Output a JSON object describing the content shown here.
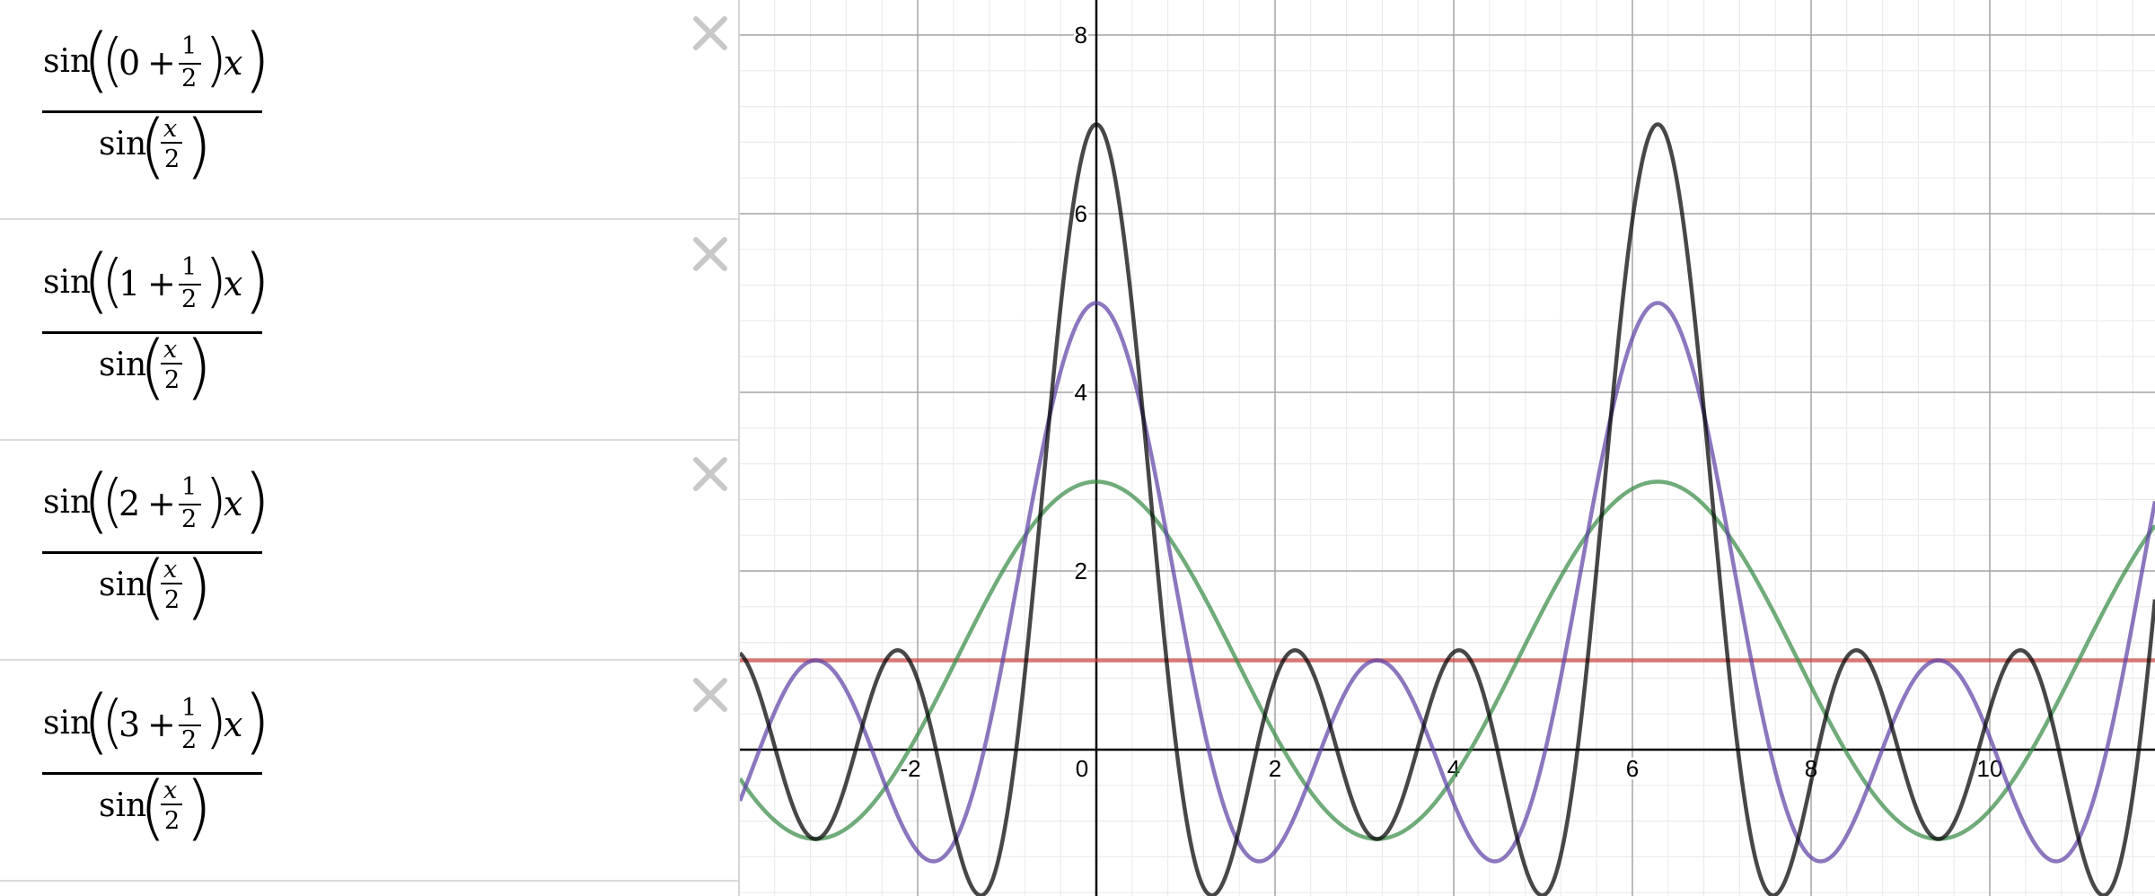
{
  "expressions": [
    {
      "fn": "sin",
      "k": "0",
      "plus": "+",
      "half_num": "1",
      "half_den": "2",
      "var": "x",
      "den_fn": "sin",
      "den_num": "x",
      "den_den": "2",
      "color": "#c74440"
    },
    {
      "fn": "sin",
      "k": "1",
      "plus": "+",
      "half_num": "1",
      "half_den": "2",
      "var": "x",
      "den_fn": "sin",
      "den_num": "x",
      "den_den": "2",
      "color": "#388c46"
    },
    {
      "fn": "sin",
      "k": "2",
      "plus": "+",
      "half_num": "1",
      "half_den": "2",
      "var": "x",
      "den_fn": "sin",
      "den_num": "x",
      "den_den": "2",
      "color": "#6042a6"
    },
    {
      "fn": "sin",
      "k": "3",
      "plus": "+",
      "half_num": "1",
      "half_den": "2",
      "var": "x",
      "den_fn": "sin",
      "den_num": "x",
      "den_den": "2",
      "color": "#000000"
    }
  ],
  "delete_icon": "close-x-icon",
  "chart_data": {
    "type": "line",
    "title": "",
    "xlabel": "",
    "ylabel": "",
    "xlim": [
      -4.1,
      11.8
    ],
    "ylim": [
      -1.6,
      8.4
    ],
    "grid": true,
    "x_ticks": [
      "-2",
      "0",
      "2",
      "4",
      "6",
      "8",
      "10"
    ],
    "y_ticks": [
      "2",
      "4",
      "6",
      "8"
    ],
    "series": [
      {
        "n": 0,
        "color": "#c74440",
        "formula": "sin((0 + 1/2)x) / sin(x/2)",
        "max": 1,
        "min": 1
      },
      {
        "n": 1,
        "color": "#388c46",
        "formula": "sin((1 + 1/2)x) / sin(x/2)",
        "max": 3,
        "min": -1
      },
      {
        "n": 2,
        "color": "#6042a6",
        "formula": "sin((2 + 1/2)x) / sin(x/2)",
        "max": 5,
        "min": -1.24
      },
      {
        "n": 3,
        "color": "#000000",
        "formula": "sin((3 + 1/2)x) / sin(x/2)",
        "max": 7,
        "min": -1.6
      }
    ]
  }
}
